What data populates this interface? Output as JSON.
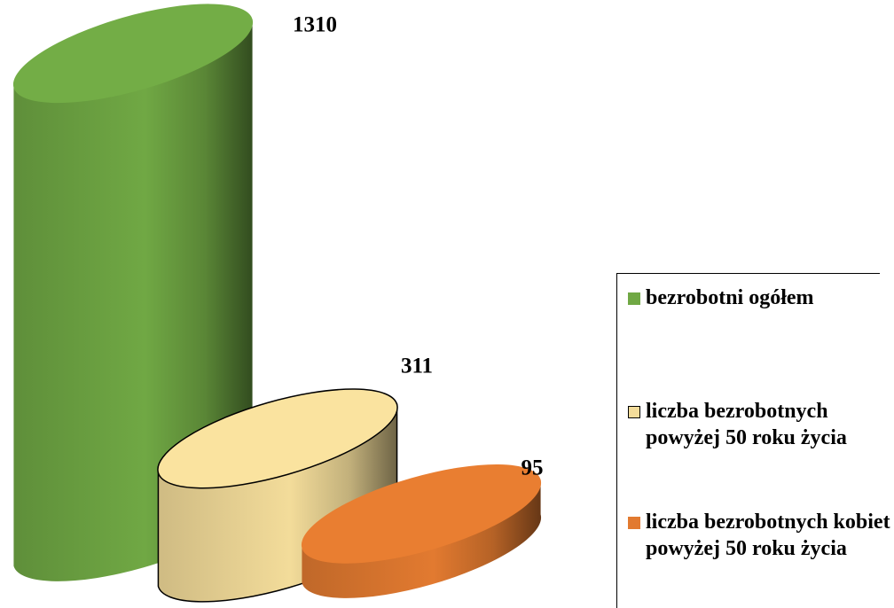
{
  "chart_data": {
    "type": "bar",
    "series": [
      {
        "name": "bezrobotni ogółem",
        "color": "#70a844",
        "values": [
          1310
        ]
      },
      {
        "name": "liczba bezrobotnych powyżej 50 roku życia",
        "color": "#f3dc9a",
        "values": [
          311
        ]
      },
      {
        "name": "liczba bezrobotnych kobiet powyżej 50 roku życia",
        "color": "#e27a30",
        "values": [
          95
        ]
      }
    ],
    "legend": "right"
  }
}
